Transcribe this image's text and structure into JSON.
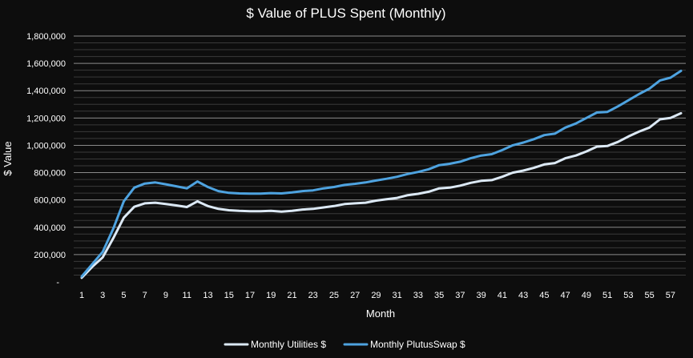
{
  "chart_data": {
    "type": "line",
    "title": "$ Value of PLUS Spent (Monthly)",
    "xlabel": "Month",
    "ylabel": "$ Value",
    "ylim": [
      0,
      1800000
    ],
    "y_ticks": [
      {
        "value": 0,
        "label": "-"
      },
      {
        "value": 200000,
        "label": "200,000"
      },
      {
        "value": 400000,
        "label": "400,000"
      },
      {
        "value": 600000,
        "label": "600,000"
      },
      {
        "value": 800000,
        "label": "800,000"
      },
      {
        "value": 1000000,
        "label": "1,000,000"
      },
      {
        "value": 1200000,
        "label": "1,200,000"
      },
      {
        "value": 1400000,
        "label": "1,400,000"
      },
      {
        "value": 1600000,
        "label": "1,600,000"
      },
      {
        "value": 1800000,
        "label": "1,800,000"
      }
    ],
    "minor_grid_step": 50000,
    "x_tick_labels": [
      "1",
      "3",
      "5",
      "7",
      "9",
      "11",
      "13",
      "15",
      "17",
      "19",
      "21",
      "23",
      "25",
      "27",
      "29",
      "31",
      "33",
      "35",
      "37",
      "39",
      "41",
      "43",
      "45",
      "47",
      "49",
      "51",
      "53",
      "55",
      "57"
    ],
    "x": [
      1,
      2,
      3,
      4,
      5,
      6,
      7,
      8,
      9,
      10,
      11,
      12,
      13,
      14,
      15,
      16,
      17,
      18,
      19,
      20,
      21,
      22,
      23,
      24,
      25,
      26,
      27,
      28,
      29,
      30,
      31,
      32,
      33,
      34,
      35,
      36,
      37,
      38,
      39,
      40,
      41,
      42,
      43,
      44,
      45,
      46,
      47,
      48,
      49,
      50,
      51,
      52,
      53,
      54,
      55,
      56,
      57,
      58
    ],
    "legend_position": "bottom",
    "series": [
      {
        "name": "Monthly Utilities $",
        "color": "#dce9f5",
        "values": [
          30000,
          110000,
          180000,
          320000,
          470000,
          550000,
          575000,
          580000,
          570000,
          560000,
          548000,
          590000,
          555000,
          535000,
          525000,
          520000,
          518000,
          518000,
          520000,
          515000,
          520000,
          530000,
          535000,
          545000,
          555000,
          570000,
          575000,
          580000,
          595000,
          605000,
          615000,
          635000,
          645000,
          660000,
          685000,
          690000,
          705000,
          725000,
          740000,
          745000,
          770000,
          800000,
          815000,
          835000,
          860000,
          870000,
          905000,
          925000,
          955000,
          990000,
          995000,
          1025000,
          1065000,
          1100000,
          1130000,
          1190000,
          1200000,
          1235000
        ]
      },
      {
        "name": "Monthly PlutusSwap $",
        "color": "#4ea3e0",
        "values": [
          40000,
          130000,
          220000,
          390000,
          590000,
          690000,
          720000,
          728000,
          715000,
          700000,
          685000,
          735000,
          695000,
          665000,
          652000,
          648000,
          647000,
          647000,
          650000,
          648000,
          655000,
          665000,
          670000,
          685000,
          695000,
          710000,
          718000,
          728000,
          742000,
          755000,
          770000,
          790000,
          805000,
          825000,
          855000,
          865000,
          880000,
          905000,
          925000,
          935000,
          965000,
          1000000,
          1020000,
          1045000,
          1075000,
          1085000,
          1130000,
          1160000,
          1200000,
          1240000,
          1245000,
          1285000,
          1330000,
          1375000,
          1415000,
          1475000,
          1495000,
          1545000
        ]
      }
    ]
  }
}
